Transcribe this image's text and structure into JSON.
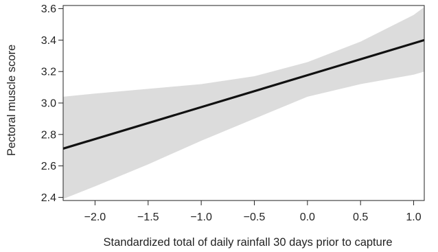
{
  "chart_data": {
    "type": "line",
    "xlabel": "Standardized total of daily rainfall 30 days prior to capture",
    "ylabel": "Pectoral muscle score",
    "xlim": [
      -2.3,
      1.1
    ],
    "ylim": [
      2.38,
      3.62
    ],
    "x_ticks": [
      -2.0,
      -1.5,
      -1.0,
      -0.5,
      0.0,
      0.5,
      1.0
    ],
    "x_tick_labels": [
      "−2.0",
      "−1.5",
      "−1.0",
      "−0.5",
      "0.0",
      "0.5",
      "1.0"
    ],
    "y_ticks": [
      2.4,
      2.6,
      2.8,
      3.0,
      3.2,
      3.4,
      3.6
    ],
    "y_tick_labels": [
      "2.4",
      "2.6",
      "2.8",
      "3.0",
      "3.2",
      "3.4",
      "3.6"
    ],
    "grid": false,
    "legend": "none",
    "series": [
      {
        "x": [
          -2.3,
          1.1
        ],
        "y": [
          2.71,
          3.4
        ],
        "color": "#111111"
      }
    ],
    "confidence_band": {
      "x": [
        -2.3,
        -2.0,
        -1.5,
        -1.0,
        -0.5,
        0.0,
        0.5,
        1.0,
        1.1
      ],
      "upper": [
        3.04,
        3.06,
        3.09,
        3.12,
        3.17,
        3.26,
        3.39,
        3.56,
        3.61
      ],
      "lower": [
        2.39,
        2.47,
        2.61,
        2.76,
        2.9,
        3.04,
        3.12,
        3.18,
        3.2
      ],
      "color": "#dcdcdc"
    },
    "colors": {
      "axis": "#222222",
      "line": "#111111",
      "band": "#dcdcdc"
    }
  }
}
